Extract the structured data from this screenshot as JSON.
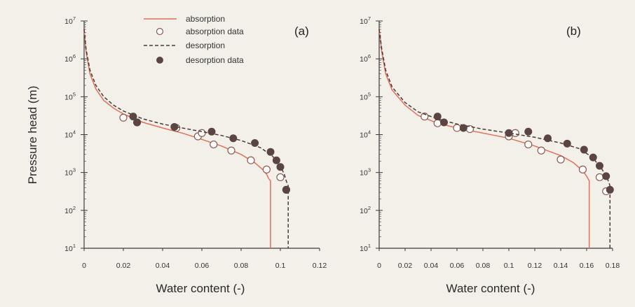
{
  "colors": {
    "absorption": "#e0705a",
    "desorption": "#4a3a33",
    "data_open_stroke": "#8b5a4e",
    "data_filled": "#5a4540",
    "axis": "#3a3a3a",
    "background": "#f3f0ea"
  },
  "legend": [
    {
      "label": "absorption",
      "style": "solid-line"
    },
    {
      "label": "absorption data",
      "style": "open-circle"
    },
    {
      "label": "desorption",
      "style": "dashed-line"
    },
    {
      "label": "desorption data",
      "style": "filled-circle"
    }
  ],
  "chart_data": [
    {
      "type": "line",
      "panel_label": "(a)",
      "xlabel": "Water content (-)",
      "ylabel": "Pressure head (m)",
      "xlim": [
        0,
        0.12
      ],
      "ylim": [
        10,
        10000000
      ],
      "yscale": "log",
      "x_ticks": [
        "0",
        "0.02",
        "0.04",
        "0.06",
        "0.08",
        "0.1",
        "0.12"
      ],
      "y_ticks": [
        10,
        100,
        1000,
        10000,
        100000,
        1000000,
        10000000
      ],
      "y_tick_labels": [
        [
          "10",
          "1"
        ],
        [
          "10",
          "2"
        ],
        [
          "10",
          "3"
        ],
        [
          "10",
          "4"
        ],
        [
          "10",
          "5"
        ],
        [
          "10",
          "6"
        ],
        [
          "10",
          "7"
        ]
      ],
      "series": [
        {
          "name": "absorption",
          "kind": "line",
          "x": [
            0,
            0.001,
            0.003,
            0.006,
            0.01,
            0.015,
            0.02,
            0.03,
            0.04,
            0.05,
            0.06,
            0.07,
            0.08,
            0.087,
            0.091,
            0.093,
            0.094,
            0.095,
            0.095
          ],
          "y": [
            6000000,
            1500000,
            400000,
            160000,
            80000,
            50000,
            35000,
            21000,
            15000,
            11000,
            7500,
            5000,
            3000,
            1800,
            1200,
            900,
            700,
            600,
            10
          ]
        },
        {
          "name": "absorption data",
          "kind": "open",
          "x": [
            0.02,
            0.027,
            0.047,
            0.058,
            0.06,
            0.066,
            0.075,
            0.085,
            0.093,
            0.1,
            0.103
          ],
          "y": [
            28000,
            21000,
            15000,
            9000,
            11000,
            5500,
            3800,
            2100,
            1200,
            750,
            350
          ]
        },
        {
          "name": "desorption",
          "kind": "dashed",
          "x": [
            0,
            0.001,
            0.003,
            0.006,
            0.01,
            0.015,
            0.02,
            0.03,
            0.04,
            0.05,
            0.06,
            0.07,
            0.08,
            0.09,
            0.096,
            0.1,
            0.102,
            0.103,
            0.104,
            0.104
          ],
          "y": [
            6000000,
            1800000,
            500000,
            200000,
            100000,
            60000,
            42000,
            26000,
            19000,
            15000,
            12000,
            9500,
            7000,
            4500,
            2700,
            1500,
            900,
            600,
            450,
            10
          ]
        },
        {
          "name": "desorption data",
          "kind": "filled",
          "x": [
            0.025,
            0.027,
            0.046,
            0.065,
            0.076,
            0.087,
            0.095,
            0.098,
            0.1,
            0.103
          ],
          "y": [
            30000,
            21000,
            16000,
            12000,
            8000,
            6000,
            3500,
            2100,
            1400,
            350
          ]
        }
      ]
    },
    {
      "type": "line",
      "panel_label": "(b)",
      "xlabel": "Water content (-)",
      "xlim": [
        0,
        0.18
      ],
      "ylim": [
        10,
        10000000
      ],
      "yscale": "log",
      "x_ticks": [
        "0",
        "0.02",
        "0.04",
        "0.06",
        "0.08",
        "0.1",
        "0.12",
        "0.14",
        "0.16",
        "0.18"
      ],
      "y_ticks": [
        10,
        100,
        1000,
        10000,
        100000,
        1000000,
        10000000
      ],
      "y_tick_labels": [
        [
          "10",
          "1"
        ],
        [
          "10",
          "2"
        ],
        [
          "10",
          "3"
        ],
        [
          "10",
          "4"
        ],
        [
          "10",
          "5"
        ],
        [
          "10",
          "6"
        ],
        [
          "10",
          "7"
        ]
      ],
      "series": [
        {
          "name": "absorption",
          "kind": "line",
          "x": [
            0,
            0.002,
            0.005,
            0.01,
            0.02,
            0.03,
            0.045,
            0.06,
            0.08,
            0.1,
            0.12,
            0.14,
            0.15,
            0.157,
            0.16,
            0.162,
            0.162
          ],
          "y": [
            6000000,
            1500000,
            400000,
            150000,
            60000,
            32000,
            20000,
            15000,
            11000,
            8000,
            5000,
            2800,
            1800,
            1100,
            800,
            600,
            10
          ]
        },
        {
          "name": "absorption data",
          "kind": "open",
          "x": [
            0.035,
            0.045,
            0.06,
            0.07,
            0.1,
            0.105,
            0.115,
            0.125,
            0.14,
            0.157,
            0.17,
            0.175
          ],
          "y": [
            30000,
            20000,
            15000,
            14000,
            9000,
            11000,
            5500,
            3800,
            2200,
            1200,
            750,
            320
          ]
        },
        {
          "name": "desorption",
          "kind": "dashed",
          "x": [
            0,
            0.002,
            0.005,
            0.01,
            0.02,
            0.03,
            0.045,
            0.06,
            0.08,
            0.1,
            0.12,
            0.14,
            0.155,
            0.165,
            0.172,
            0.176,
            0.178,
            0.178
          ],
          "y": [
            6000000,
            1800000,
            500000,
            180000,
            70000,
            40000,
            26000,
            19000,
            14000,
            11000,
            8500,
            6000,
            4200,
            2400,
            1200,
            700,
            450,
            10
          ]
        },
        {
          "name": "desorption data",
          "kind": "filled",
          "x": [
            0.045,
            0.05,
            0.065,
            0.1,
            0.115,
            0.13,
            0.145,
            0.158,
            0.165,
            0.17,
            0.175,
            0.178
          ],
          "y": [
            30000,
            21000,
            15000,
            11000,
            12000,
            8000,
            5800,
            4000,
            2500,
            1500,
            800,
            350
          ]
        }
      ]
    }
  ]
}
